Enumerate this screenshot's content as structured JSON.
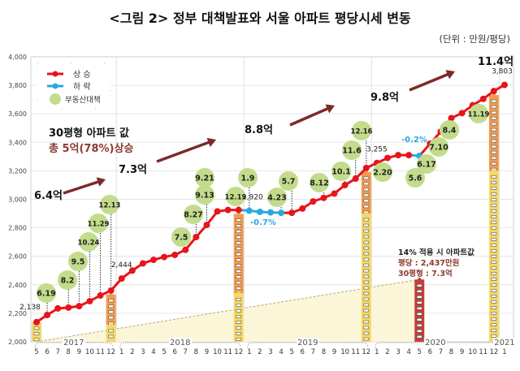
{
  "title": "<그림 2> 정부 대책발표와 서울 아파트 평당시세 변동",
  "unit": "(단위 : 만원/평당)",
  "legend": {
    "rise": "상 승",
    "fall": "하 락",
    "policy": "부동산대책"
  },
  "colors": {
    "rise": "#e8141b",
    "fall": "#29a8e0",
    "policy": "#c3dc8c",
    "arrow": "#7a2b27",
    "bar_yellow": "#f5d865",
    "bar_orange": "#f29a4e",
    "bar_red": "#c0403a",
    "area": "#fbf6d8"
  },
  "annotations": {
    "p1": "6.4억",
    "p2": "7.3억",
    "p3": "8.8억",
    "p4": "9.8억",
    "p5": "11.4억",
    "headline1": "30평형 아파트 값",
    "headline2": "총 5억(78%)상승",
    "fall1": "-0.7%",
    "fall2": "-0.2%",
    "note1": "14% 적용 시 아파트값",
    "note2": "평당 : 2,437만원",
    "note3": "30평형 : 7.3억"
  },
  "chart_data": {
    "type": "line",
    "title": "<그림 2> 정부 대책발표와 서울 아파트 평당시세 변동",
    "ylabel": "(단위 : 만원/평당)",
    "ylim": [
      2000,
      4000
    ],
    "yticks": [
      "2,000",
      "2,200",
      "2,400",
      "2,600",
      "2,800",
      "3,000",
      "3,200",
      "3,400",
      "3,600",
      "3,800",
      "4,000"
    ],
    "grid": true,
    "legend_position": "top-left",
    "years": [
      "2017",
      "2018",
      "2019",
      "2020",
      "2021"
    ],
    "x": [
      "2017-05",
      "2017-06",
      "2017-07",
      "2017-08",
      "2017-09",
      "2017-10",
      "2017-11",
      "2017-12",
      "2018-01",
      "2018-02",
      "2018-03",
      "2018-04",
      "2018-05",
      "2018-06",
      "2018-07",
      "2018-08",
      "2018-09",
      "2018-10",
      "2018-11",
      "2018-12",
      "2019-01",
      "2019-02",
      "2019-03",
      "2019-04",
      "2019-05",
      "2019-06",
      "2019-07",
      "2019-08",
      "2019-09",
      "2019-10",
      "2019-11",
      "2019-12",
      "2020-01",
      "2020-02",
      "2020-03",
      "2020-04",
      "2020-05",
      "2020-06",
      "2020-07",
      "2020-08",
      "2020-09",
      "2020-10",
      "2020-11",
      "2020-12",
      "2021-01"
    ],
    "month_labels": [
      "5",
      "6",
      "7",
      "8",
      "9",
      "10",
      "11",
      "12",
      "1",
      "2",
      "3",
      "4",
      "5",
      "6",
      "7",
      "8",
      "9",
      "10",
      "11",
      "12",
      "1",
      "2",
      "3",
      "4",
      "5",
      "6",
      "7",
      "8",
      "9",
      "10",
      "11",
      "12",
      "1",
      "2",
      "3",
      "4",
      "5",
      "6",
      "7",
      "8",
      "9",
      "10",
      "11",
      "12",
      "1"
    ],
    "values": [
      2138,
      2188,
      2234,
      2240,
      2250,
      2285,
      2325,
      2360,
      2444,
      2500,
      2550,
      2575,
      2595,
      2610,
      2645,
      2735,
      2820,
      2915,
      2925,
      2925,
      2920,
      2912,
      2908,
      2905,
      2905,
      2935,
      2985,
      3010,
      3040,
      3100,
      3145,
      3220,
      3255,
      3290,
      3310,
      3310,
      3305,
      3390,
      3475,
      3570,
      3605,
      3660,
      3705,
      3760,
      3803
    ],
    "falling_segments": [
      [
        "2018-12",
        "2019-04"
      ],
      [
        "2020-04",
        "2020-05"
      ]
    ],
    "data_labels": [
      {
        "x": "2017-05",
        "text": "2,138"
      },
      {
        "x": "2018-01",
        "text": "2,444"
      },
      {
        "x": "2019-01",
        "text": "2,920"
      },
      {
        "x": "2020-01",
        "text": "3,255"
      },
      {
        "x": "2021-01",
        "text": "3,803"
      }
    ],
    "policies": [
      "6.19",
      "8.2",
      "9.5",
      "10.24",
      "11.29",
      "12.13",
      "7.5",
      "8.27",
      "9.13",
      "9.21",
      "12.19",
      "1.9",
      "4.23",
      "5.7",
      "8.12",
      "10.1",
      "11.6",
      "12.16",
      "2.20",
      "5.6",
      "6.17",
      "7.10",
      "8.4",
      "11.19"
    ],
    "bars": [
      {
        "x": "2017-05",
        "yellow": 2138
      },
      {
        "x": "2017-12",
        "yellow": 2120,
        "orange": 2360
      },
      {
        "x": "2018-12",
        "yellow": 2340,
        "orange": 2925
      },
      {
        "x": "2019-12",
        "yellow": 2900,
        "orange": 3220
      },
      {
        "x": "2020-05",
        "red": 2437
      },
      {
        "x": "2020-12",
        "yellow": 3200,
        "orange": 3760
      }
    ],
    "trend_line": {
      "from": [
        "2017-05",
        2000
      ],
      "to": [
        "2020-05",
        2437
      ]
    }
  }
}
